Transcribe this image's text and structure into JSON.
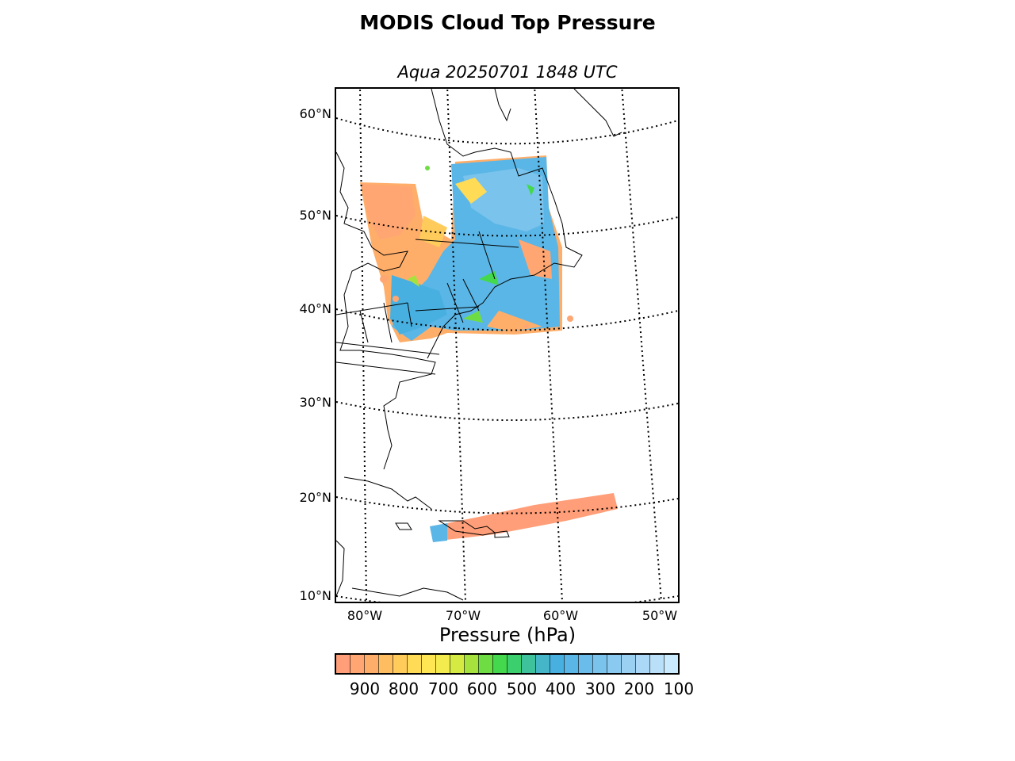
{
  "title": "MODIS Cloud Top Pressure",
  "subtitle": "Aqua 20250701 1848 UTC",
  "map": {
    "projection": "lambert-conformal",
    "lat_labels": [
      "60°N",
      "50°N",
      "40°N",
      "30°N",
      "20°N",
      "10°N"
    ],
    "lon_labels": [
      "80°W",
      "70°W",
      "60°W",
      "50°W"
    ],
    "gridlines": "dotted",
    "coastlines": true,
    "state_borders": true,
    "swaths": [
      {
        "region": "Northeast US / Eastern Canada / Quebec",
        "dominant_range_hPa": "300-400",
        "edges_range_hPa": "700-900"
      },
      {
        "region": "Caribbean / Greater Antilles",
        "dominant_range_hPa": "800-900"
      }
    ]
  },
  "colorbar": {
    "label": "Pressure (hPa)",
    "ticks": [
      "900",
      "800",
      "700",
      "600",
      "500",
      "400",
      "300",
      "200",
      "100"
    ],
    "colors": [
      "#ff9e78",
      "#ffa672",
      "#ffae6a",
      "#ffbd62",
      "#ffcc5c",
      "#ffdb56",
      "#ffe652",
      "#f4ec4e",
      "#d6ea44",
      "#a6e23e",
      "#6edd44",
      "#44d84c",
      "#3ccf6e",
      "#3ec29c",
      "#44b6c8",
      "#48b0e0",
      "#5ab6e6",
      "#6abdea",
      "#7ac3ed",
      "#8acaf0",
      "#9ad1f3",
      "#aad8f6",
      "#badff9",
      "#caeafd"
    ]
  }
}
